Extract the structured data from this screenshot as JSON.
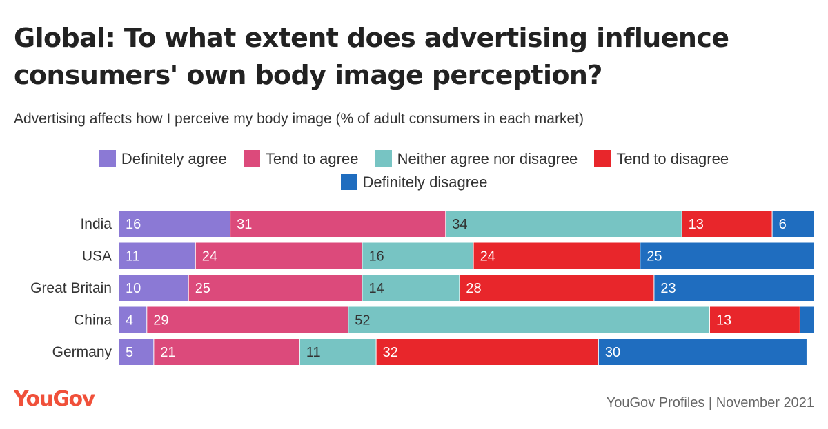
{
  "title": "Global: To what extent does advertising influence consumers' own body image perception?",
  "subtitle": "Advertising affects how I perceive my body image (% of adult consumers in each market)",
  "brand": "YouGov",
  "source": "YouGov Profiles | November 2021",
  "chart_data": {
    "type": "bar",
    "orientation": "horizontal",
    "stacked": true,
    "title": "Global: To what extent does advertising influence consumers' own body image perception?",
    "subtitle": "Advertising affects how I perceive my body image (% of adult consumers in each market)",
    "categories": [
      "India",
      "USA",
      "Great Britain",
      "China",
      "Germany"
    ],
    "xlim": [
      0,
      100
    ],
    "grid": false,
    "legend_position": "top",
    "series": [
      {
        "name": "Definitely agree",
        "color": "#8b79d5",
        "values": [
          16,
          11,
          10,
          4,
          5
        ]
      },
      {
        "name": "Tend to agree",
        "color": "#dc4a7b",
        "values": [
          31,
          24,
          25,
          29,
          21
        ]
      },
      {
        "name": "Neither agree nor disagree",
        "color": "#77c4c3",
        "values": [
          34,
          16,
          14,
          52,
          11
        ]
      },
      {
        "name": "Tend to disagree",
        "color": "#e8262b",
        "values": [
          13,
          24,
          28,
          13,
          32
        ]
      },
      {
        "name": "Definitely disagree",
        "color": "#1f6dbf",
        "values": [
          6,
          25,
          23,
          2,
          30
        ]
      }
    ],
    "label_text_colors": [
      "#ffffff",
      "#ffffff",
      "#333333",
      "#ffffff",
      "#ffffff"
    ],
    "labels_shown": [
      [
        true,
        true,
        true,
        true,
        true
      ],
      [
        true,
        true,
        true,
        true,
        true
      ],
      [
        true,
        true,
        true,
        true,
        true
      ],
      [
        true,
        true,
        true,
        true,
        false
      ],
      [
        true,
        true,
        true,
        true,
        true
      ]
    ]
  }
}
